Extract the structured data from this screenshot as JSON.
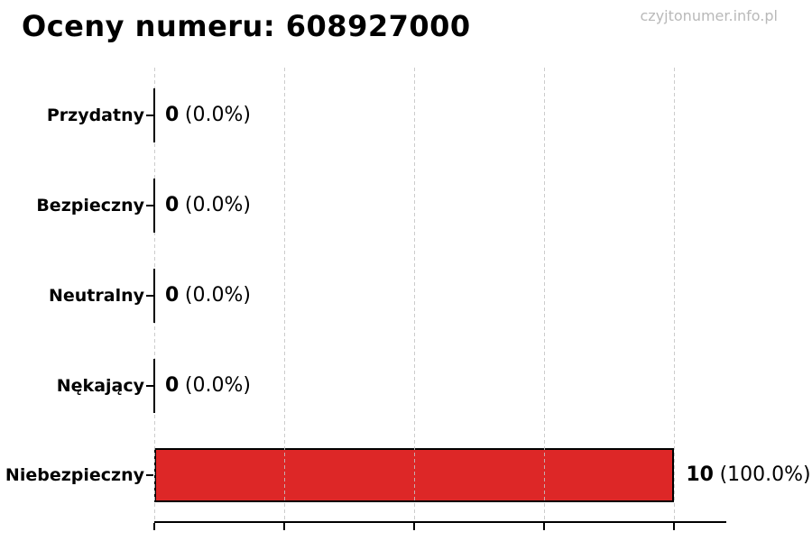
{
  "title": "Oceny numeru: 608927000",
  "watermark": "czyjtonumer.info.pl",
  "chart_data": {
    "type": "bar",
    "orientation": "horizontal",
    "title": "Oceny numeru: 608927000",
    "categories": [
      "Przydatny",
      "Bezpieczny",
      "Neutralny",
      "Nękający",
      "Niebezpieczny"
    ],
    "values": [
      0,
      0,
      0,
      0,
      10
    ],
    "percentages": [
      0.0,
      0.0,
      0.0,
      0.0,
      100.0
    ],
    "rows": [
      {
        "label": "Przydatny",
        "value": 0,
        "count": "0",
        "pct": "(0.0%)"
      },
      {
        "label": "Bezpieczny",
        "value": 0,
        "count": "0",
        "pct": "(0.0%)"
      },
      {
        "label": "Neutralny",
        "value": 0,
        "count": "0",
        "pct": "(0.0%)"
      },
      {
        "label": "Nękający",
        "value": 0,
        "count": "0",
        "pct": "(0.0%)"
      },
      {
        "label": "Niebezpieczny",
        "value": 10,
        "count": "10",
        "pct": "(100.0%)"
      }
    ],
    "xlabel": "",
    "ylabel": "",
    "xlim": [
      0,
      11
    ],
    "x_ticks": [
      0,
      2.5,
      5,
      7.5,
      10
    ],
    "x_tick_labels_visible": false,
    "grid": true,
    "grid_style": "dashed",
    "grid_color": "#c9c9c9",
    "bar_color": "#dd2727",
    "bar_edge_color": "#000000",
    "legend": null
  }
}
